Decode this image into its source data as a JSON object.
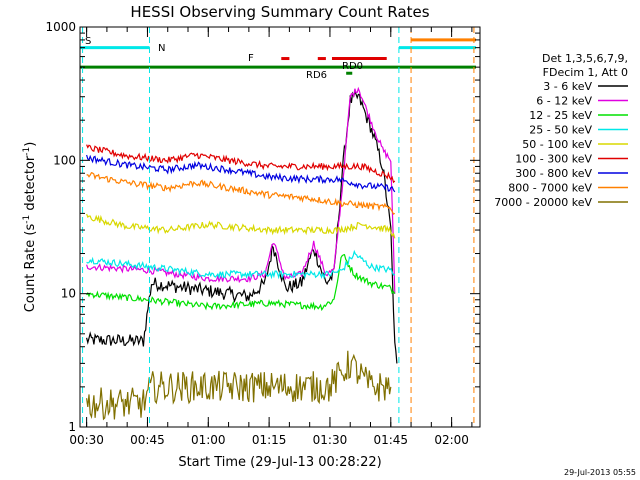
{
  "chart_data": {
    "type": "line",
    "title": "HESSI Observing Summary Count Rates",
    "xlabel": "Start Time (29-Jul-13 00:28:22)",
    "ylabel": "Count Rate (s⁻¹ detector⁻¹)",
    "ylabel_main": "Count Rate (s",
    "ylabel_sup1": "-1",
    "ylabel_mid": " detector",
    "ylabel_sup2": "-1",
    "ylabel_end": ")",
    "yscale": "log",
    "xlim": [
      "00:28:22",
      "02:07:00"
    ],
    "ylim": [
      1,
      1000
    ],
    "x_ticks": [
      "00:30",
      "00:45",
      "01:00",
      "01:15",
      "01:30",
      "01:45",
      "02:00"
    ],
    "y_ticks": [
      "1",
      "10",
      "100",
      "1000"
    ],
    "grid": false,
    "timestamp": "29-Jul-2013 05:55",
    "legend": {
      "placement": "right",
      "header": [
        "Det 1,3,5,6,7,9,",
        "FDecim 1, Att 0"
      ],
      "entries": [
        {
          "label": "3 - 6 keV",
          "color": "#000000"
        },
        {
          "label": "6 - 12 keV",
          "color": "#e000e0"
        },
        {
          "label": "12 - 25 keV",
          "color": "#00e000"
        },
        {
          "label": "25 - 50 keV",
          "color": "#00e8e8"
        },
        {
          "label": "50 - 100 keV",
          "color": "#d8d800"
        },
        {
          "label": "100 - 300 keV",
          "color": "#e00000"
        },
        {
          "label": "300 - 800 keV",
          "color": "#0000e0"
        },
        {
          "label": "800 - 7000 keV",
          "color": "#ff8000"
        },
        {
          "label": "7000 - 20000 keV",
          "color": "#807000"
        }
      ]
    },
    "annotations": {
      "S": {
        "label": "S",
        "color": "#ff8000"
      },
      "N": {
        "label": "N",
        "color": "#00e8e8"
      },
      "F": {
        "label": "F",
        "color": "#e00000"
      },
      "RD0": {
        "label": "RD0",
        "color": "#007000"
      },
      "RD6": {
        "label": "RD6",
        "color": "#007000"
      }
    },
    "bars": [
      {
        "name": "saa",
        "color": "#ff8000",
        "level": 800,
        "spans": [
          [
            "01:50:00",
            "02:06:00"
          ]
        ]
      },
      {
        "name": "night",
        "color": "#00e8e8",
        "level": 700,
        "spans": [
          [
            "00:28:22",
            "00:45:30"
          ],
          [
            "01:47:00",
            "02:06:00"
          ]
        ]
      },
      {
        "name": "flare",
        "color": "#e00000",
        "level": 580,
        "spans": [
          [
            "01:18:00",
            "01:20:00"
          ],
          [
            "01:27:00",
            "01:29:00"
          ],
          [
            "01:30:30",
            "01:44:00"
          ]
        ]
      },
      {
        "name": "rd0",
        "color": "#008000",
        "level": 500,
        "spans": [
          [
            "00:28:22",
            "02:06:00"
          ]
        ]
      },
      {
        "name": "rd6",
        "color": "#008000",
        "level": 450,
        "spans": [
          [
            "01:34:00",
            "01:35:30"
          ]
        ]
      }
    ],
    "vlines": [
      {
        "time": "00:29:00",
        "color": "#00e8e8"
      },
      {
        "time": "00:45:30",
        "color": "#00e8e8"
      },
      {
        "time": "01:47:00",
        "color": "#00e8e8"
      },
      {
        "time": "01:50:00",
        "color": "#ff8000"
      },
      {
        "time": "02:05:30",
        "color": "#ff8000"
      }
    ],
    "series": [
      {
        "name": "3 - 6 keV",
        "color": "#000000",
        "x": [
          "00:30",
          "00:44",
          "00:46",
          "00:55",
          "01:05",
          "01:10",
          "01:14",
          "01:16",
          "01:19",
          "01:23",
          "01:26",
          "01:29",
          "01:31",
          "01:33",
          "01:35",
          "01:37",
          "01:40",
          "01:43",
          "01:45",
          "01:46",
          "01:46:30"
        ],
        "y": [
          4.5,
          4.4,
          12,
          11,
          10,
          9.5,
          12,
          23,
          11,
          12,
          22,
          12,
          14,
          80,
          280,
          300,
          180,
          90,
          30,
          4,
          3
        ]
      },
      {
        "name": "6 - 12 keV",
        "color": "#e000e0",
        "x": [
          "00:30",
          "00:45",
          "01:00",
          "01:10",
          "01:14",
          "01:16",
          "01:19",
          "01:23",
          "01:26",
          "01:29",
          "01:31",
          "01:33",
          "01:35",
          "01:37",
          "01:40",
          "01:43",
          "01:45",
          "01:46"
        ],
        "y": [
          16,
          15,
          13,
          13,
          14,
          25,
          13,
          14,
          24,
          14,
          15,
          60,
          300,
          350,
          200,
          120,
          100,
          10
        ]
      },
      {
        "name": "12 - 25 keV",
        "color": "#00e000",
        "x": [
          "00:30",
          "00:45",
          "01:00",
          "01:15",
          "01:28",
          "01:31",
          "01:33",
          "01:36",
          "01:40",
          "01:45",
          "01:46"
        ],
        "y": [
          10,
          9,
          8,
          8.5,
          8,
          9,
          20,
          14,
          12,
          11,
          10
        ]
      },
      {
        "name": "25 - 50 keV",
        "color": "#00e8e8",
        "x": [
          "00:30",
          "00:45",
          "01:00",
          "01:15",
          "01:30",
          "01:33",
          "01:36",
          "01:40",
          "01:45",
          "01:46"
        ],
        "y": [
          18,
          16,
          14,
          14,
          14,
          15,
          20,
          16,
          15,
          14
        ]
      },
      {
        "name": "50 - 100 keV",
        "color": "#d8d800",
        "x": [
          "00:30",
          "00:40",
          "00:50",
          "01:00",
          "01:15",
          "01:25",
          "01:32",
          "01:38",
          "01:45",
          "01:46"
        ],
        "y": [
          38,
          32,
          30,
          33,
          30,
          30,
          30,
          33,
          30,
          26
        ]
      },
      {
        "name": "100 - 300 keV",
        "color": "#e00000",
        "x": [
          "00:30",
          "00:40",
          "00:50",
          "00:57",
          "01:05",
          "01:15",
          "01:25",
          "01:32",
          "01:38",
          "01:45",
          "01:46"
        ],
        "y": [
          125,
          108,
          100,
          110,
          100,
          90,
          90,
          90,
          90,
          75,
          70
        ]
      },
      {
        "name": "300 - 800 keV",
        "color": "#0000e0",
        "x": [
          "00:30",
          "00:40",
          "00:50",
          "00:57",
          "01:05",
          "01:15",
          "01:25",
          "01:32",
          "01:38",
          "01:45",
          "01:46"
        ],
        "y": [
          105,
          92,
          85,
          92,
          85,
          75,
          72,
          72,
          65,
          62,
          58
        ]
      },
      {
        "name": "800 - 7000 keV",
        "color": "#ff8000",
        "x": [
          "00:30",
          "00:40",
          "00:50",
          "00:57",
          "01:05",
          "01:15",
          "01:25",
          "01:32",
          "01:38",
          "01:45",
          "01:46"
        ],
        "y": [
          78,
          68,
          62,
          68,
          62,
          55,
          52,
          48,
          46,
          44,
          40
        ]
      },
      {
        "name": "7000 - 20000 keV",
        "color": "#807000",
        "x": [
          "00:30",
          "00:44",
          "00:46",
          "01:00",
          "01:15",
          "01:30",
          "01:35",
          "01:40",
          "01:45"
        ],
        "y": [
          1.5,
          1.5,
          2,
          2,
          2,
          2,
          3,
          2,
          2
        ]
      }
    ]
  }
}
